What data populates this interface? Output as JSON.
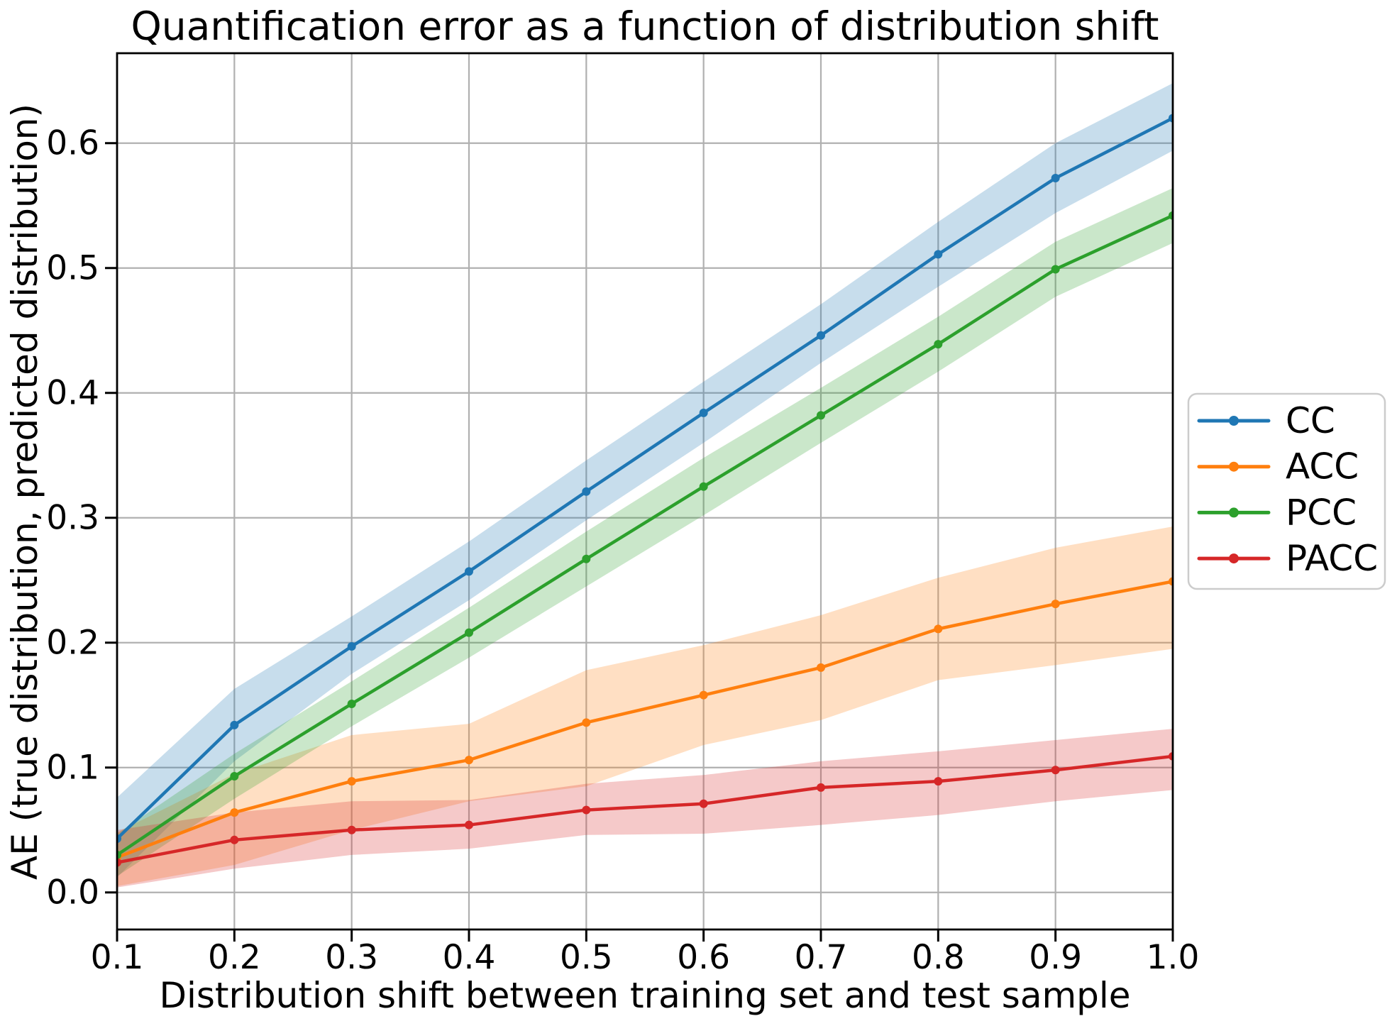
{
  "chart_data": {
    "type": "line",
    "title": "Quantification error as a function of distribution shift",
    "xlabel": "Distribution shift between training set and test sample",
    "ylabel": "AE (true distribution, predicted distribution)",
    "x": [
      0.1,
      0.2,
      0.3,
      0.4,
      0.5,
      0.6,
      0.7,
      0.8,
      0.9,
      1.0
    ],
    "xtick_labels": [
      "0.1",
      "0.2",
      "0.3",
      "0.4",
      "0.5",
      "0.6",
      "0.7",
      "0.8",
      "0.9",
      "1.0"
    ],
    "ytick_values": [
      0.0,
      0.1,
      0.2,
      0.3,
      0.4,
      0.5,
      0.6
    ],
    "ytick_labels": [
      "0.0",
      "0.1",
      "0.2",
      "0.3",
      "0.4",
      "0.5",
      "0.6"
    ],
    "xlim": [
      0.1,
      1.0
    ],
    "ylim": [
      -0.0297,
      0.672
    ],
    "grid": true,
    "grid_color": "#b0b0b0",
    "background_color": "#ffffff",
    "legend_position": "outside-right",
    "band_opacity": 0.25,
    "series": [
      {
        "name": "CC",
        "color": "#1f77b4",
        "values": [
          0.043,
          0.134,
          0.197,
          0.257,
          0.321,
          0.384,
          0.446,
          0.511,
          0.572,
          0.62
        ],
        "band_lower": [
          0.012,
          0.105,
          0.175,
          0.234,
          0.298,
          0.36,
          0.424,
          0.485,
          0.544,
          0.594
        ],
        "band_upper": [
          0.076,
          0.163,
          0.221,
          0.281,
          0.346,
          0.409,
          0.471,
          0.537,
          0.6,
          0.648
        ]
      },
      {
        "name": "ACC",
        "color": "#ff7f0e",
        "values": [
          0.028,
          0.064,
          0.089,
          0.106,
          0.136,
          0.158,
          0.18,
          0.211,
          0.231,
          0.249
        ],
        "band_lower": [
          0.005,
          0.022,
          0.05,
          0.073,
          0.085,
          0.118,
          0.138,
          0.17,
          0.182,
          0.195
        ],
        "band_upper": [
          0.048,
          0.095,
          0.126,
          0.135,
          0.178,
          0.198,
          0.222,
          0.252,
          0.276,
          0.293
        ]
      },
      {
        "name": "PCC",
        "color": "#2ca02c",
        "values": [
          0.03,
          0.093,
          0.151,
          0.208,
          0.267,
          0.325,
          0.382,
          0.439,
          0.499,
          0.542
        ],
        "band_lower": [
          0.013,
          0.075,
          0.133,
          0.188,
          0.245,
          0.302,
          0.36,
          0.417,
          0.477,
          0.52
        ],
        "band_upper": [
          0.047,
          0.111,
          0.169,
          0.228,
          0.289,
          0.348,
          0.404,
          0.461,
          0.521,
          0.564
        ]
      },
      {
        "name": "PACC",
        "color": "#d62728",
        "values": [
          0.024,
          0.042,
          0.05,
          0.054,
          0.066,
          0.071,
          0.084,
          0.089,
          0.098,
          0.109
        ],
        "band_lower": [
          0.004,
          0.019,
          0.03,
          0.035,
          0.046,
          0.047,
          0.054,
          0.062,
          0.073,
          0.082
        ],
        "band_upper": [
          0.05,
          0.064,
          0.073,
          0.074,
          0.087,
          0.094,
          0.105,
          0.113,
          0.122,
          0.131
        ]
      }
    ]
  },
  "layout_text": {
    "note": ""
  }
}
